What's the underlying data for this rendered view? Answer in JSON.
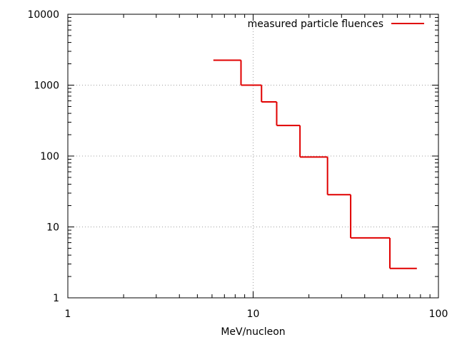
{
  "chart_data": {
    "type": "line",
    "step": true,
    "title": "",
    "xlabel": "MeV/nucleon",
    "ylabel": "",
    "xscale": "log",
    "yscale": "log",
    "xlim": [
      1,
      100
    ],
    "ylim": [
      1,
      10000
    ],
    "grid": true,
    "legend_position": "top-right",
    "x_ticks": [
      {
        "value": 1,
        "label": "1"
      },
      {
        "value": 10,
        "label": "10"
      },
      {
        "value": 100,
        "label": "100"
      }
    ],
    "y_ticks": [
      {
        "value": 1,
        "label": "1"
      },
      {
        "value": 10,
        "label": "10"
      },
      {
        "value": 100,
        "label": "100"
      },
      {
        "value": 1000,
        "label": "1000"
      },
      {
        "value": 10000,
        "label": "10000"
      }
    ],
    "series": [
      {
        "name": "measured particle fluences",
        "color": "#e00000",
        "steps": [
          {
            "x_start": 6.1,
            "x_end": 8.6,
            "y": 2250
          },
          {
            "x_start": 8.6,
            "x_end": 11.1,
            "y": 1000
          },
          {
            "x_start": 11.1,
            "x_end": 13.4,
            "y": 580
          },
          {
            "x_start": 13.4,
            "x_end": 17.9,
            "y": 270
          },
          {
            "x_start": 17.9,
            "x_end": 25.2,
            "y": 97
          },
          {
            "x_start": 25.2,
            "x_end": 33.6,
            "y": 28.5
          },
          {
            "x_start": 33.6,
            "x_end": 54.7,
            "y": 7
          },
          {
            "x_start": 54.7,
            "x_end": 76.5,
            "y": 2.6
          }
        ]
      }
    ]
  }
}
